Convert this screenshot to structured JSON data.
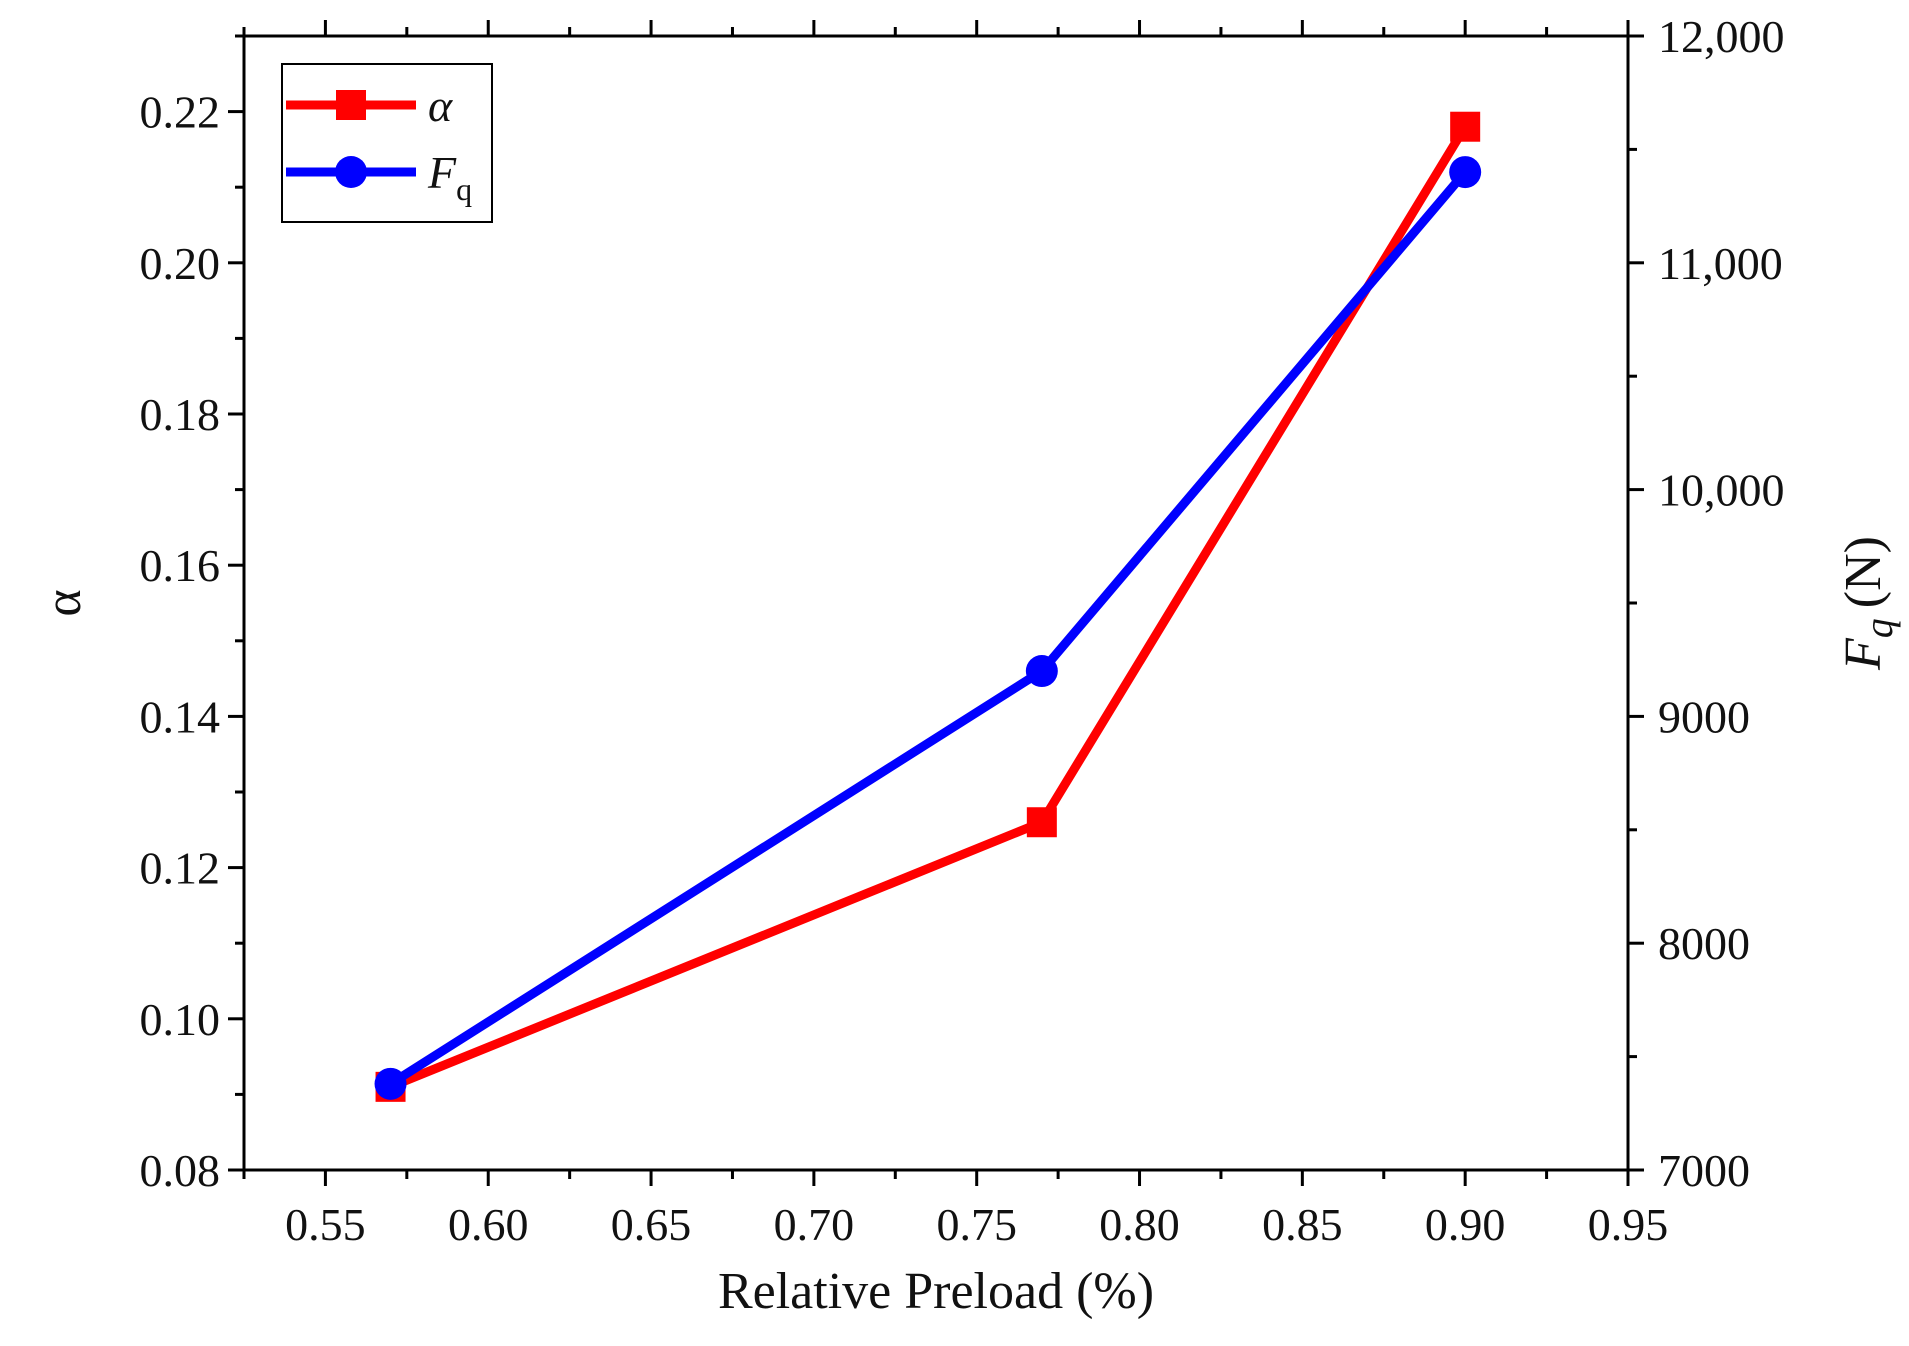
{
  "chart_data": {
    "type": "line",
    "x": [
      0.57,
      0.77,
      0.9
    ],
    "xlabel": "Relative Preload (%)",
    "xlim": [
      0.525,
      0.95
    ],
    "xticks": [
      "0.55",
      "0.60",
      "0.65",
      "0.70",
      "0.75",
      "0.80",
      "0.85",
      "0.90",
      "0.95"
    ],
    "y_left": {
      "label": "α",
      "lim": [
        0.08,
        0.23
      ],
      "ticks": [
        "0.08",
        "0.10",
        "0.12",
        "0.14",
        "0.16",
        "0.18",
        "0.20",
        "0.22"
      ]
    },
    "y_right": {
      "label": "F",
      "label_sub": "q",
      "label_unit": "(N)",
      "lim": [
        7000,
        12000
      ],
      "ticks": [
        "7000",
        "8000",
        "9000",
        "10,000",
        "11,000",
        "12,000"
      ]
    },
    "series": [
      {
        "name": "α",
        "axis": "left",
        "color": "#ff0000",
        "marker": "square",
        "values": [
          0.091,
          0.126,
          0.218
        ]
      },
      {
        "name": "F",
        "name_sub": "q",
        "axis": "right",
        "color": "#0000ff",
        "marker": "circle",
        "values": [
          7380,
          9200,
          11400
        ]
      }
    ],
    "legend_position": "top-left",
    "grid": false
  }
}
